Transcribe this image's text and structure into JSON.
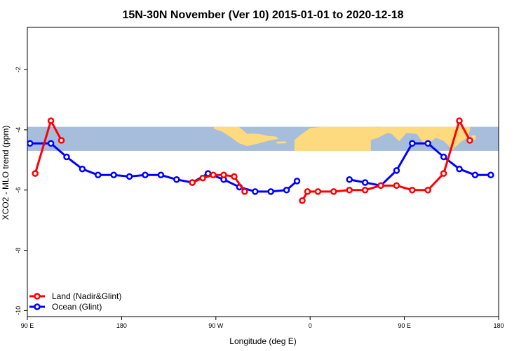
{
  "chart_data": {
    "type": "line",
    "title": "15N-30N November (Ver 10)   2015-01-01 to 2020-12-18",
    "xlabel": "Longitude (deg E)",
    "ylabel": "XCO2 - MLO trend (ppm)",
    "x_tick_values": [
      90,
      180,
      270,
      360,
      450,
      540
    ],
    "x_tick_labels": [
      "90 E",
      "180",
      "90 W",
      "0",
      "90 E",
      "180"
    ],
    "y_tick_values": [
      -2,
      -4,
      -6,
      -8,
      -10
    ],
    "y_tick_labels": [
      "-2",
      "-4",
      "-6",
      "-8",
      "-10"
    ],
    "xlim": [
      90,
      540
    ],
    "ylim": [
      -10.2,
      -0.6
    ],
    "grid": false,
    "legend_position": "bottom-left",
    "background_map": {
      "y_range": [
        -4.7,
        -3.9
      ],
      "ocean_color": "#A6BDDB",
      "land_color": "#FEDA7E"
    },
    "series": [
      {
        "name": "Land (Nadir&Glint)",
        "color": "#FF0000",
        "segments": [
          [
            [
              97.5,
              -5.45
            ],
            [
              112.5,
              -3.7
            ],
            [
              122.5,
              -4.35
            ]
          ],
          [
            [
              247.5,
              -5.75
            ],
            [
              257.5,
              -5.6
            ],
            [
              267.5,
              -5.5
            ],
            [
              277.5,
              -5.5
            ],
            [
              287.5,
              -5.55
            ],
            [
              297.5,
              -6.05
            ]
          ],
          [
            [
              352.5,
              -6.35
            ],
            [
              357.5,
              -6.05
            ],
            [
              367.5,
              -6.05
            ],
            [
              382.5,
              -6.05
            ],
            [
              397.5,
              -6.0
            ],
            [
              412.5,
              -6.0
            ],
            [
              427.5,
              -5.85
            ],
            [
              442.5,
              -5.85
            ],
            [
              457.5,
              -6.0
            ],
            [
              472.5,
              -6.0
            ],
            [
              487.5,
              -5.45
            ],
            [
              502.5,
              -3.7
            ],
            [
              512.5,
              -4.35
            ]
          ]
        ]
      },
      {
        "name": "Ocean (Glint)",
        "color": "#0000FF",
        "segments": [
          [
            [
              92.5,
              -4.45
            ],
            [
              112.5,
              -4.45
            ],
            [
              127.5,
              -4.9
            ],
            [
              142.5,
              -5.3
            ],
            [
              157.5,
              -5.5
            ],
            [
              172.5,
              -5.5
            ],
            [
              187.5,
              -5.55
            ],
            [
              202.5,
              -5.5
            ],
            [
              217.5,
              -5.5
            ],
            [
              232.5,
              -5.65
            ],
            [
              247.5,
              -5.75
            ],
            [
              262.5,
              -5.45
            ],
            [
              277.5,
              -5.65
            ],
            [
              292.5,
              -5.9
            ],
            [
              307.5,
              -6.05
            ],
            [
              322.5,
              -6.05
            ],
            [
              337.5,
              -6.0
            ],
            [
              347.5,
              -5.7
            ]
          ],
          [
            [
              397.5,
              -5.65
            ],
            [
              412.5,
              -5.75
            ],
            [
              427.5,
              -5.85
            ],
            [
              442.5,
              -5.35
            ],
            [
              457.5,
              -4.45
            ],
            [
              472.5,
              -4.45
            ],
            [
              487.5,
              -4.9
            ],
            [
              502.5,
              -5.3
            ],
            [
              517.5,
              -5.5
            ],
            [
              532.5,
              -5.5
            ]
          ]
        ]
      }
    ]
  }
}
